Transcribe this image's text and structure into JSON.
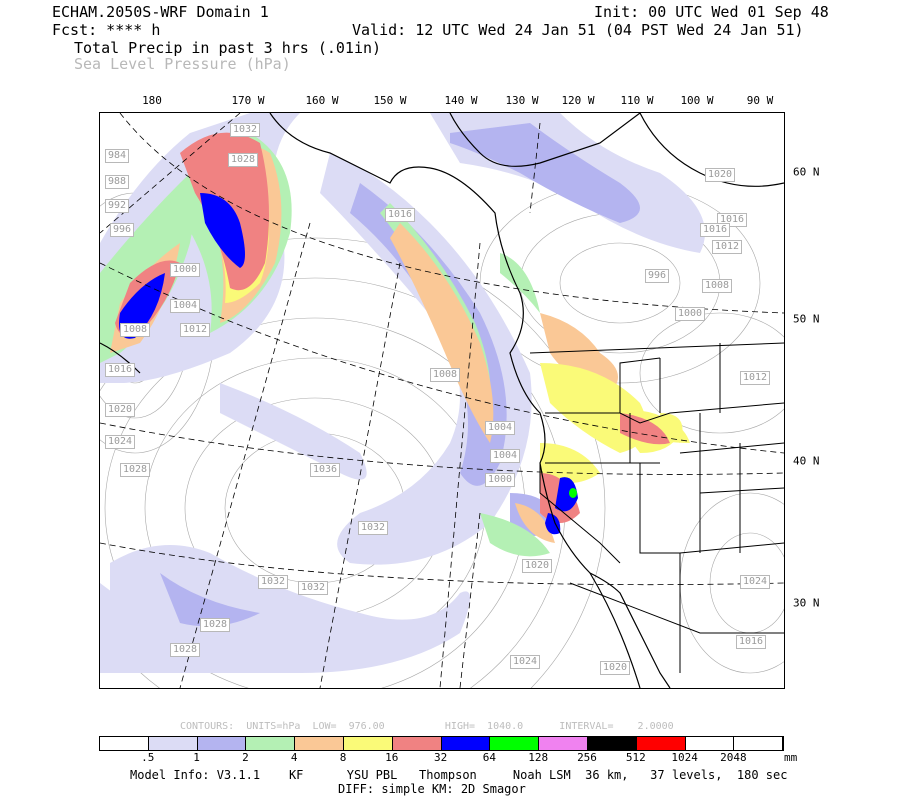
{
  "header": {
    "model": "ECHAM.2050S-WRF Domain 1",
    "init": "Init: 00 UTC Wed 01 Sep 48",
    "fcst": "Fcst: **** h",
    "valid": "Valid: 12 UTC Wed 24 Jan 51 (04 PST Wed 24 Jan 51)",
    "field1": "Total Precip in past 3 hrs (.01in)",
    "field2": "Sea Level Pressure (hPa)"
  },
  "axes": {
    "lon_labels": [
      "180",
      "170 W",
      "160 W",
      "150 W",
      "140 W",
      "130 W",
      "120 W",
      "110 W",
      "100 W",
      "90 W"
    ],
    "lat_labels": [
      "60 N",
      "50 N",
      "40 N",
      "30 N"
    ]
  },
  "pressure_labels": [
    "1032",
    "1028",
    "984",
    "988",
    "992",
    "996",
    "1000",
    "1004",
    "1008",
    "1012",
    "1016",
    "1020",
    "1024",
    "1028",
    "1036",
    "1032",
    "1032",
    "1032",
    "1028",
    "1028",
    "1020",
    "1024",
    "1020",
    "1016",
    "1008",
    "1004",
    "1024",
    "1020",
    "1016",
    "1012",
    "1008",
    "1000",
    "996",
    "1016",
    "1004",
    "1000",
    "1012",
    "1016"
  ],
  "contours_text": "CONTOURS:  UNITS=hPa  LOW=  976.00          HIGH=  1040.0      INTERVAL=    2.0000",
  "colorbar": {
    "colors": [
      "#ffffff",
      "#dcdcf5",
      "#b4b4f0",
      "#b4f0b4",
      "#fac896",
      "#fafa78",
      "#f08282",
      "#0000ff",
      "#00ff00",
      "#f082f0",
      "#000000",
      "#ff0000",
      "#ffffff",
      "#ffffff"
    ],
    "labels": [
      ".5",
      "1",
      "2",
      "4",
      "8",
      "16",
      "32",
      "64",
      "128",
      "256",
      "512",
      "1024",
      "2048"
    ],
    "unit": "mm"
  },
  "footer": {
    "line1": "Model Info: V3.1.1    KF      YSU PBL   Thompson     Noah LSM  36 km,   37 levels,  180 sec",
    "line2": "DIFF: simple KM: 2D Smagor"
  }
}
